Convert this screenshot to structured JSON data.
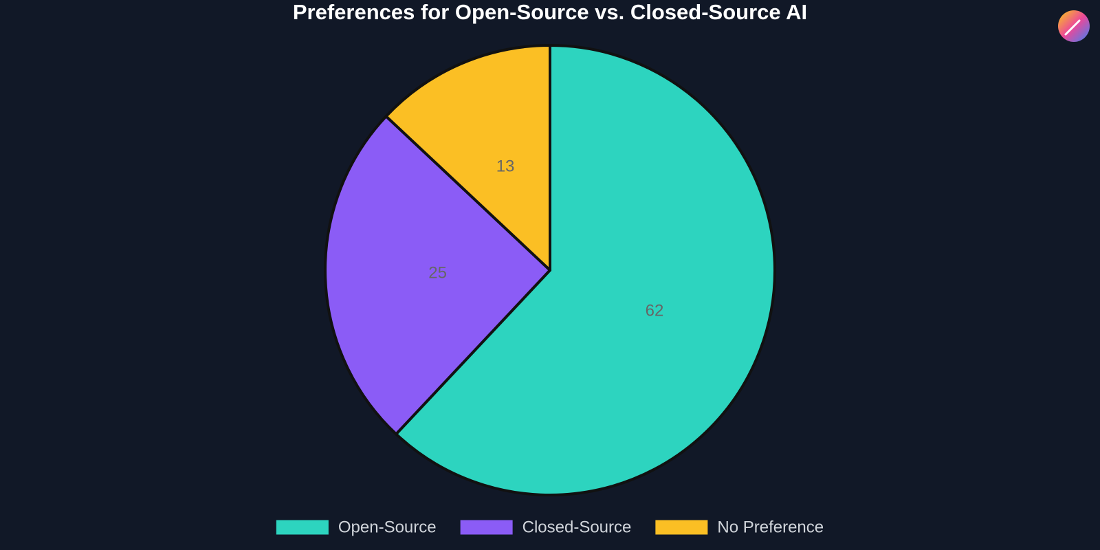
{
  "chart_data": {
    "type": "pie",
    "title": "Preferences for Open-Source vs. Closed-Source AI",
    "categories": [
      "Open-Source",
      "Closed-Source",
      "No Preference"
    ],
    "values": [
      62,
      25,
      13
    ],
    "colors": [
      "#2dd4bf",
      "#8b5cf6",
      "#fbbf24"
    ],
    "legend": "bottom"
  }
}
